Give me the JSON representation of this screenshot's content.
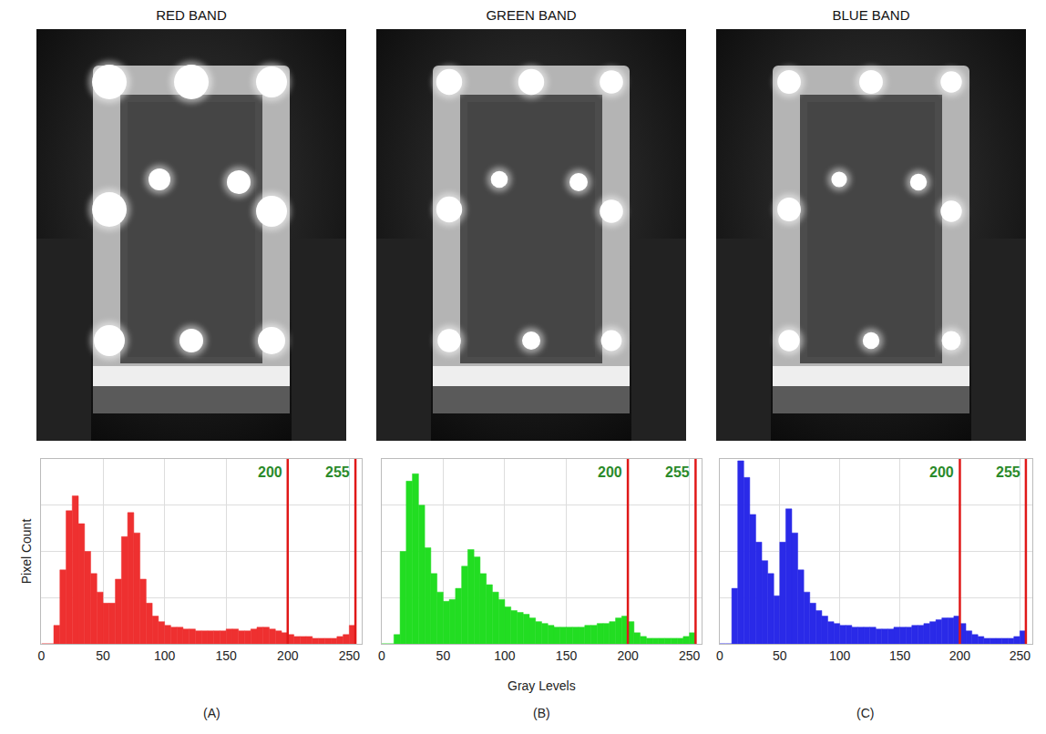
{
  "chart_data": [
    {
      "type": "histogram",
      "title": "RED BAND",
      "annotations": [
        "(A)"
      ],
      "ylabel": "Pixel Count",
      "color": "#ee3030",
      "bins": [
        0,
        5,
        10,
        15,
        20,
        25,
        30,
        35,
        40,
        45,
        50,
        55,
        60,
        65,
        70,
        75,
        80,
        85,
        90,
        95,
        100,
        105,
        110,
        115,
        120,
        125,
        130,
        135,
        140,
        145,
        150,
        155,
        160,
        165,
        170,
        175,
        180,
        185,
        190,
        195,
        200,
        205,
        210,
        215,
        220,
        225,
        230,
        235,
        240,
        245,
        250,
        255
      ],
      "counts": [
        0,
        0,
        10,
        40,
        72,
        80,
        65,
        50,
        38,
        28,
        22,
        22,
        35,
        58,
        71,
        60,
        35,
        22,
        15,
        12,
        10,
        9,
        9,
        8,
        8,
        7,
        7,
        7,
        7,
        7,
        8,
        8,
        7,
        7,
        8,
        9,
        9,
        8,
        7,
        6,
        5,
        4,
        4,
        4,
        3,
        3,
        3,
        3,
        4,
        5,
        10
      ],
      "xlim": [
        0,
        260
      ],
      "xticks": [
        0,
        50,
        100,
        150,
        200,
        250
      ],
      "ylim": [
        0,
        100
      ],
      "yticks": [
        0,
        25,
        50,
        75,
        100
      ],
      "grid": true,
      "tick_labels": "x",
      "vlines": [
        200,
        255
      ]
    },
    {
      "type": "histogram",
      "title": "GREEN BAND",
      "annotations": [
        "(B)"
      ],
      "xlabel": "Gray Levels",
      "color": "#22dd22",
      "bins": [
        0,
        5,
        10,
        15,
        20,
        25,
        30,
        35,
        40,
        45,
        50,
        55,
        60,
        65,
        70,
        75,
        80,
        85,
        90,
        95,
        100,
        105,
        110,
        115,
        120,
        125,
        130,
        135,
        140,
        145,
        150,
        155,
        160,
        165,
        170,
        175,
        180,
        185,
        190,
        195,
        200,
        205,
        210,
        215,
        220,
        225,
        230,
        235,
        240,
        245,
        250,
        255
      ],
      "counts": [
        0,
        0,
        5,
        50,
        88,
        92,
        75,
        52,
        38,
        28,
        23,
        24,
        30,
        42,
        51,
        47,
        38,
        32,
        28,
        24,
        20,
        18,
        17,
        16,
        14,
        12,
        11,
        10,
        9,
        9,
        9,
        9,
        9,
        10,
        10,
        11,
        11,
        12,
        14,
        15,
        12,
        6,
        4,
        3,
        3,
        3,
        3,
        3,
        3,
        4,
        6
      ],
      "xlim": [
        0,
        260
      ],
      "xticks": [
        0,
        50,
        100,
        150,
        200,
        250
      ],
      "ylim": [
        0,
        100
      ],
      "yticks": [
        0,
        25,
        50,
        75,
        100
      ],
      "grid": true,
      "tick_labels": "x",
      "vlines": [
        200,
        255
      ]
    },
    {
      "type": "histogram",
      "title": "BLUE BAND",
      "annotations": [
        "(C)"
      ],
      "color": "#2a2ae8",
      "bins": [
        0,
        5,
        10,
        15,
        20,
        25,
        30,
        35,
        40,
        45,
        50,
        55,
        60,
        65,
        70,
        75,
        80,
        85,
        90,
        95,
        100,
        105,
        110,
        115,
        120,
        125,
        130,
        135,
        140,
        145,
        150,
        155,
        160,
        165,
        170,
        175,
        180,
        185,
        190,
        195,
        200,
        205,
        210,
        215,
        220,
        225,
        230,
        235,
        240,
        245,
        250,
        255
      ],
      "counts": [
        0,
        0,
        30,
        99,
        90,
        70,
        55,
        45,
        38,
        26,
        55,
        73,
        60,
        40,
        28,
        22,
        18,
        15,
        12,
        11,
        10,
        10,
        9,
        9,
        9,
        9,
        8,
        8,
        8,
        9,
        9,
        9,
        10,
        10,
        11,
        12,
        13,
        14,
        14,
        15,
        11,
        7,
        5,
        4,
        3,
        3,
        3,
        3,
        3,
        4,
        7
      ],
      "xlim": [
        0,
        260
      ],
      "xticks": [
        0,
        50,
        100,
        150,
        200,
        250
      ],
      "ylim": [
        0,
        100
      ],
      "yticks": [
        0,
        25,
        50,
        75,
        100
      ],
      "grid": true,
      "tick_labels": "x",
      "vlines": [
        200,
        255
      ]
    }
  ]
}
